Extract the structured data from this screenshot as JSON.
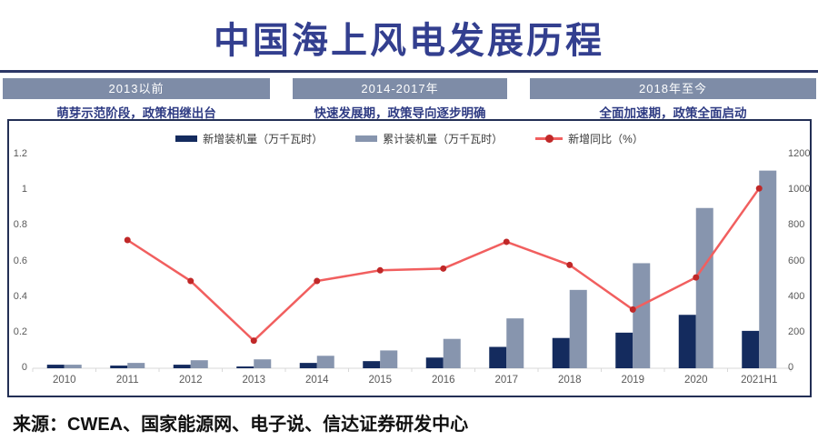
{
  "page": {
    "title": "中国海上风电发展历程",
    "source": "来源：CWEA、国家能源网、电子说、信达证券研发中心"
  },
  "stages": [
    {
      "period": "2013以前",
      "caption": "萌芽示范阶段，政策相继出台"
    },
    {
      "period": "2014-2017年",
      "caption": "快速发展期，政策导向逐步明确"
    },
    {
      "period": "2018年至今",
      "caption": "全面加速期，政策全面启动"
    }
  ],
  "colors": {
    "title_navy": "#333f8f",
    "divider": "#2c3766",
    "banner_bg": "#7e8ca7",
    "box_border": "#232f55",
    "axis_text": "#595959",
    "baseline": "#d9d9d9"
  },
  "chart_data": {
    "type": "combo",
    "title": "",
    "categories": [
      "2010",
      "2011",
      "2012",
      "2013",
      "2014",
      "2015",
      "2016",
      "2017",
      "2018",
      "2019",
      "2020",
      "2021H1"
    ],
    "series": [
      {
        "name": "新增装机量（万千瓦时）",
        "type": "bar",
        "axis": "left",
        "color": "#142b5e",
        "values": [
          0.02,
          0.015,
          0.02,
          0.01,
          0.03,
          0.04,
          0.06,
          0.12,
          0.17,
          0.2,
          0.3,
          0.21
        ]
      },
      {
        "name": "累计装机量（万千瓦时）",
        "type": "bar",
        "axis": "left",
        "color": "#8795ae",
        "values": [
          0.02,
          0.03,
          0.045,
          0.05,
          0.07,
          0.1,
          0.165,
          0.28,
          0.44,
          0.59,
          0.9,
          1.11
        ]
      },
      {
        "name": "新增同比（%）",
        "type": "line",
        "axis": "right",
        "color": "#f15f5f",
        "marker_color": "#c02828",
        "values": [
          null,
          720,
          490,
          155,
          490,
          550,
          560,
          710,
          580,
          330,
          510,
          1010
        ]
      }
    ],
    "left_axis": {
      "min": 0,
      "max": 1.2,
      "ticks": [
        0,
        0.2,
        0.4,
        0.6,
        0.8,
        1,
        1.2
      ]
    },
    "right_axis": {
      "min": 0,
      "max": 1200,
      "ticks": [
        0,
        200,
        400,
        600,
        800,
        1000,
        1200
      ]
    },
    "grid": false,
    "legend_position": "top-center"
  }
}
